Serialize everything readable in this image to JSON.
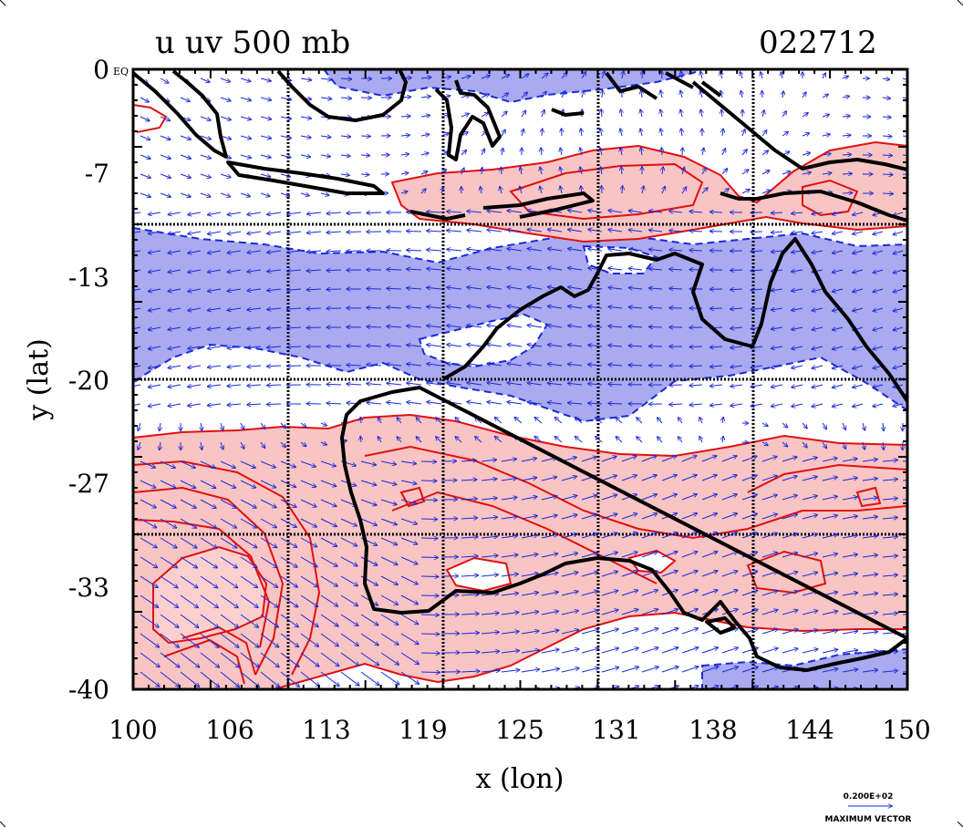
{
  "title": {
    "left": "u uv 500 mb",
    "right": "022712"
  },
  "axes": {
    "xlabel": "x (lon)",
    "ylabel": "y (lat)",
    "x_ticks": [
      "100",
      "106",
      "113",
      "119",
      "125",
      "131",
      "138",
      "144",
      "150"
    ],
    "y_ticks": [
      "0",
      "-7",
      "-13",
      "-20",
      "-27",
      "-33",
      "-40"
    ],
    "y_top_suffix": "EQ",
    "xlim": [
      100,
      150
    ],
    "ylim": [
      -40,
      0
    ]
  },
  "legend": {
    "vector_value": "0.200E+02",
    "vector_caption": "MAXIMUM VECTOR"
  },
  "colors": {
    "positive_fill": "#f8c4c4",
    "positive_line": "#e01010",
    "negative_fill": "#aaaaf0",
    "negative_line": "#1a2ad8",
    "vector": "#1a2ad8",
    "coast": "#000000",
    "grid": "#000000"
  },
  "chart_data": {
    "type": "contour-vector map",
    "variable": "u uv 500 mb",
    "date": "022712",
    "xlabel": "x (lon)",
    "ylabel": "y (lat)",
    "xlim": [
      100,
      150
    ],
    "ylim": [
      -40,
      0
    ],
    "grid": true
  }
}
